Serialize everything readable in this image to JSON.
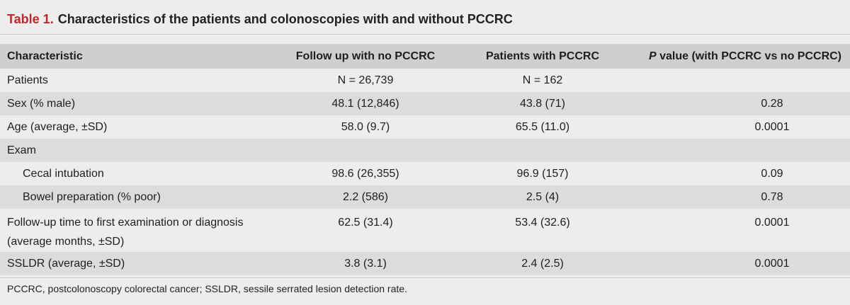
{
  "caption": {
    "label": "Table 1.",
    "title": "Characteristics of the patients and colonoscopies with and without PCCRC"
  },
  "header": {
    "characteristic": "Characteristic",
    "no_pccrc": "Follow up with no PCCRC",
    "with_pccrc": "Patients with PCCRC",
    "p_italic": "P",
    "p_rest": " value (with PCCRC vs no PCCRC)"
  },
  "rows": [
    {
      "label": "Patients",
      "no_pccrc": "N = 26,739",
      "with_pccrc": "N = 162",
      "p": ""
    },
    {
      "label": "Sex (% male)",
      "no_pccrc": "48.1 (12,846)",
      "with_pccrc": "43.8 (71)",
      "p": "0.28"
    },
    {
      "label": "Age (average, ±SD)",
      "no_pccrc": "58.0 (9.7)",
      "with_pccrc": "65.5 (11.0)",
      "p": "0.0001"
    },
    {
      "label": "Exam",
      "no_pccrc": "",
      "with_pccrc": "",
      "p": ""
    },
    {
      "label": "Cecal intubation",
      "no_pccrc": "98.6 (26,355)",
      "with_pccrc": "96.9 (157)",
      "p": "0.09"
    },
    {
      "label": "Bowel preparation (% poor)",
      "no_pccrc": "2.2 (586)",
      "with_pccrc": "2.5 (4)",
      "p": "0.78"
    },
    {
      "label": "Follow-up time to first examination or diagnosis (average months, ±SD)",
      "no_pccrc": "62.5 (31.4)",
      "with_pccrc": "53.4 (32.6)",
      "p": "0.0001"
    },
    {
      "label": "SSLDR (average, ±SD)",
      "no_pccrc": "3.8 (3.1)",
      "with_pccrc": "2.4 (2.5)",
      "p": "0.0001"
    }
  ],
  "footnote": "PCCRC, postcolonoscopy colorectal cancer; SSLDR, sessile serrated lesion detection rate."
}
